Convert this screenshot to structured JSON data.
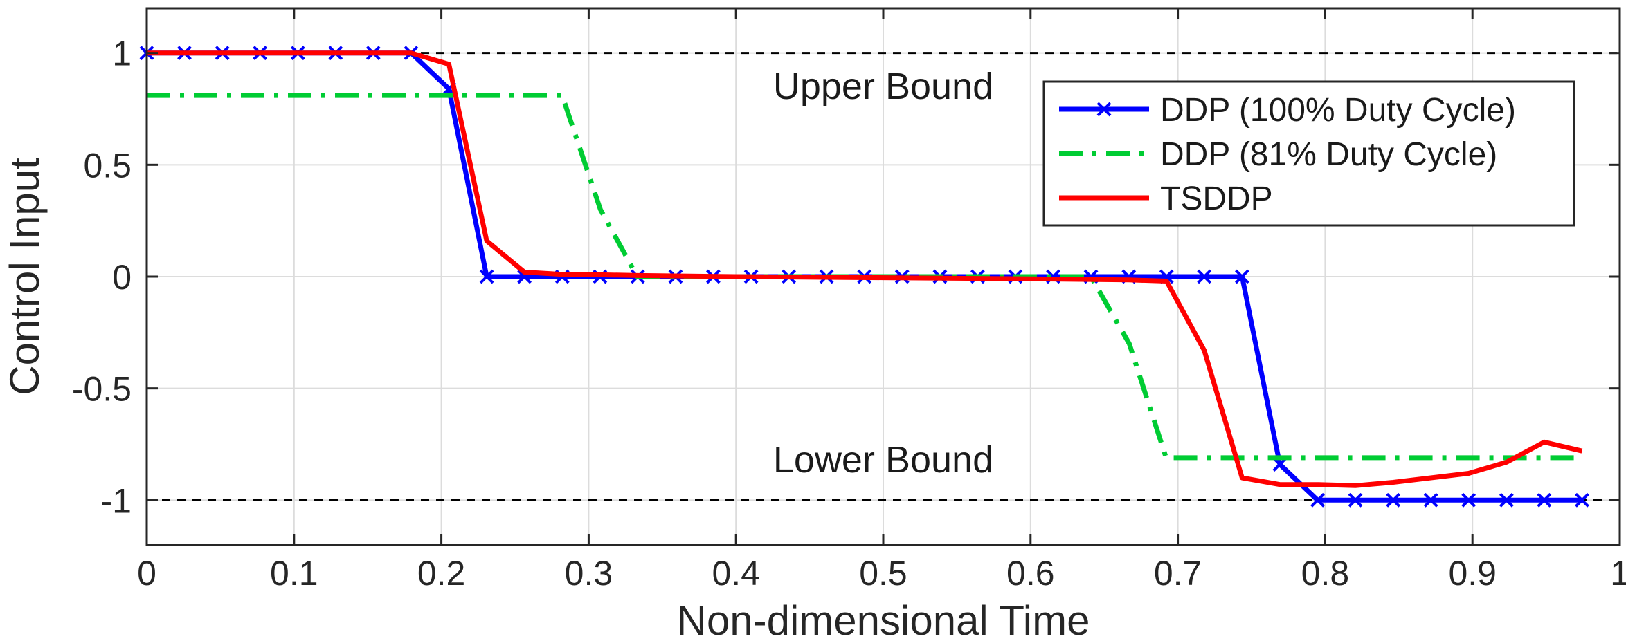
{
  "chart_data": {
    "type": "line",
    "xlabel": "Non-dimensional Time",
    "ylabel": "Control Input",
    "xlim": [
      0,
      1
    ],
    "ylim": [
      -1.2,
      1.2
    ],
    "xticks": [
      0,
      0.1,
      0.2,
      0.3,
      0.4,
      0.5,
      0.6,
      0.7,
      0.8,
      0.9,
      1
    ],
    "xtick_labels": [
      "0",
      "0.1",
      "0.2",
      "0.3",
      "0.4",
      "0.5",
      "0.6",
      "0.7",
      "0.8",
      "0.9",
      "1"
    ],
    "yticks": [
      1,
      0.5,
      0,
      -0.5,
      -1
    ],
    "ytick_labels": [
      "1",
      "0.5",
      "0",
      "-0.5",
      "-1"
    ],
    "grid": true,
    "legend_position": "top-right",
    "annotations": [
      {
        "text": "Upper Bound",
        "x": 0.5,
        "y": 0.85
      },
      {
        "text": "Lower Bound",
        "x": 0.5,
        "y": -0.82
      }
    ],
    "bounds": [
      1,
      -1
    ],
    "series": [
      {
        "name": "DDP (100% Duty Cycle)",
        "color": "#0000ff",
        "style": "solid",
        "marker": "x",
        "x": [
          0,
          0.0256,
          0.0513,
          0.0769,
          0.1026,
          0.1282,
          0.1538,
          0.1795,
          0.2051,
          0.2308,
          0.2564,
          0.2821,
          0.3077,
          0.3333,
          0.359,
          0.3846,
          0.4103,
          0.4359,
          0.4615,
          0.4872,
          0.5128,
          0.5385,
          0.5641,
          0.5897,
          0.6154,
          0.641,
          0.6667,
          0.6923,
          0.7179,
          0.7436,
          0.7692,
          0.7949,
          0.8205,
          0.8462,
          0.8718,
          0.8974,
          0.9231,
          0.9487,
          0.9744
        ],
        "y": [
          1,
          1,
          1,
          1,
          1,
          1,
          1,
          1,
          0.84,
          0,
          0,
          0,
          0,
          0,
          0,
          0,
          0,
          0,
          0,
          0,
          0,
          0,
          0,
          0,
          0,
          0,
          0,
          0,
          0,
          0,
          -0.84,
          -1,
          -1,
          -1,
          -1,
          -1,
          -1,
          -1,
          -1
        ]
      },
      {
        "name": "DDP (81% Duty Cycle)",
        "color": "#00cc33",
        "style": "dashdot",
        "x": [
          0,
          0.282,
          0.308,
          0.333,
          0.641,
          0.667,
          0.692,
          0.974
        ],
        "y": [
          0.81,
          0.81,
          0.3,
          0,
          0,
          -0.3,
          -0.81,
          -0.81
        ]
      },
      {
        "name": "TSDDP",
        "color": "#ff0000",
        "style": "solid",
        "x": [
          0,
          0.1795,
          0.2051,
          0.2308,
          0.2564,
          0.2821,
          0.3077,
          0.3333,
          0.4,
          0.5,
          0.6,
          0.6667,
          0.6923,
          0.7179,
          0.7436,
          0.7692,
          0.7949,
          0.8205,
          0.8462,
          0.8718,
          0.8974,
          0.9231,
          0.9487,
          0.9744
        ],
        "y": [
          1,
          1,
          0.95,
          0.16,
          0.02,
          0.01,
          0.008,
          0.005,
          0,
          -0.005,
          -0.01,
          -0.015,
          -0.02,
          -0.33,
          -0.9,
          -0.93,
          -0.93,
          -0.935,
          -0.92,
          -0.9,
          -0.88,
          -0.83,
          -0.74,
          -0.78
        ]
      }
    ]
  }
}
